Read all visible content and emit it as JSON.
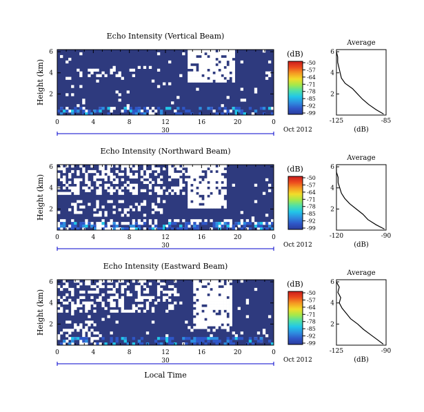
{
  "figure": {
    "xlabel": "Local Time",
    "date_label": "Oct 2012",
    "day_label": "30",
    "ylabel": "Height (km)",
    "cbar_unit": "(dB)",
    "avg_title": "Average",
    "avg_xlabel": "(dB)"
  },
  "chart_data": [
    {
      "type": "heatmap",
      "title": "Echo Intensity (Vertical Beam)",
      "xlabel": "Local Time",
      "ylabel": "Height (km)",
      "x_ticks": [
        "0",
        "4",
        "8",
        "12",
        "16",
        "20",
        "0"
      ],
      "y_ticks": [
        "2",
        "4",
        "6"
      ],
      "xlim": [
        0,
        24
      ],
      "ylim": [
        0,
        6.2
      ],
      "colorbar": {
        "label": "(dB)",
        "ticks": [
          "-50",
          "-57",
          "-64",
          "-71",
          "-78",
          "-85",
          "-92",
          "-99"
        ],
        "range": [
          -99,
          -50
        ]
      },
      "background_value": -96,
      "profile": {
        "title": "Average",
        "xlabel": "(dB)",
        "x_ticks": [
          "-125",
          "-85"
        ],
        "xlim": [
          -125,
          -85
        ],
        "y_ticks": [
          "2",
          "4",
          "6"
        ],
        "points": [
          [
            -87,
            0.1
          ],
          [
            -93,
            0.5
          ],
          [
            -99,
            1.0
          ],
          [
            -104,
            1.5
          ],
          [
            -108,
            2.0
          ],
          [
            -112,
            2.5
          ],
          [
            -118,
            3.0
          ],
          [
            -121,
            3.5
          ],
          [
            -122,
            4.0
          ],
          [
            -123,
            4.5
          ],
          [
            -124,
            5.0
          ],
          [
            -124,
            5.5
          ],
          [
            -125,
            6.0
          ]
        ]
      }
    },
    {
      "type": "heatmap",
      "title": "Echo Intensity (Northward Beam)",
      "xlabel": "Local Time",
      "ylabel": "Height (km)",
      "x_ticks": [
        "0",
        "4",
        "8",
        "12",
        "16",
        "20",
        "0"
      ],
      "y_ticks": [
        "2",
        "4",
        "6"
      ],
      "xlim": [
        0,
        24
      ],
      "ylim": [
        0,
        6.2
      ],
      "colorbar": {
        "label": "(dB)",
        "ticks": [
          "-50",
          "-57",
          "-64",
          "-71",
          "-78",
          "-85",
          "-92",
          "-99"
        ],
        "range": [
          -99,
          -50
        ]
      },
      "background_value": -96,
      "profile": {
        "title": "Average",
        "xlabel": "(dB)",
        "x_ticks": [
          "-120",
          "-90"
        ],
        "xlim": [
          -120,
          -90
        ],
        "y_ticks": [
          "2",
          "4",
          "6"
        ],
        "points": [
          [
            -91,
            0.1
          ],
          [
            -96,
            0.5
          ],
          [
            -101,
            1.0
          ],
          [
            -104,
            1.5
          ],
          [
            -108,
            2.0
          ],
          [
            -112,
            2.5
          ],
          [
            -115,
            3.0
          ],
          [
            -117,
            3.5
          ],
          [
            -118,
            4.0
          ],
          [
            -119,
            4.5
          ],
          [
            -119,
            5.0
          ],
          [
            -120,
            5.5
          ],
          [
            -120,
            6.0
          ]
        ]
      }
    },
    {
      "type": "heatmap",
      "title": "Echo Intensity (Eastward Beam)",
      "xlabel": "Local Time",
      "ylabel": "Height (km)",
      "x_ticks": [
        "0",
        "4",
        "8",
        "12",
        "16",
        "20",
        "0"
      ],
      "y_ticks": [
        "2",
        "4",
        "6"
      ],
      "xlim": [
        0,
        24
      ],
      "ylim": [
        0,
        6.2
      ],
      "colorbar": {
        "label": "(dB)",
        "ticks": [
          "-50",
          "-57",
          "-64",
          "-71",
          "-78",
          "-85",
          "-92",
          "-99"
        ],
        "range": [
          -99,
          -50
        ]
      },
      "background_value": -96,
      "profile": {
        "title": "Average",
        "xlabel": "(dB)",
        "x_ticks": [
          "-125",
          "-90"
        ],
        "xlim": [
          -125,
          -90
        ],
        "y_ticks": [
          "2",
          "4",
          "6"
        ],
        "points": [
          [
            -92,
            0.1
          ],
          [
            -96,
            0.5
          ],
          [
            -101,
            1.0
          ],
          [
            -106,
            1.5
          ],
          [
            -110,
            2.0
          ],
          [
            -115,
            2.5
          ],
          [
            -118,
            3.0
          ],
          [
            -121,
            3.5
          ],
          [
            -123,
            4.0
          ],
          [
            -122,
            4.5
          ],
          [
            -124,
            5.0
          ],
          [
            -123,
            5.5
          ],
          [
            -125,
            6.0
          ]
        ]
      }
    }
  ],
  "colors": {
    "background_cell": "#2e3a7e",
    "colorbar": [
      "#2a3c9c",
      "#2f57c8",
      "#2d8ee0",
      "#22c6e8",
      "#4fe0a8",
      "#a6e84a",
      "#f2dc2a",
      "#f59a22",
      "#ec4a1e",
      "#cc1c1c"
    ],
    "axis": "#000000",
    "date_axis": "#0000cc"
  }
}
